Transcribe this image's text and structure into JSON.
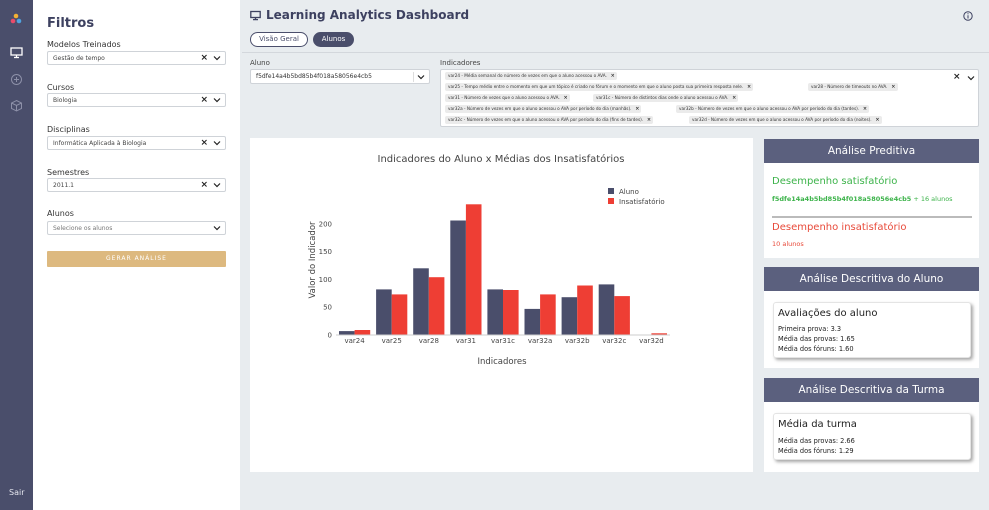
{
  "nav": {
    "sair_label": "Sair"
  },
  "filters": {
    "title": "Filtros",
    "modelos": {
      "label": "Modelos Treinados",
      "value": "Gestão de tempo"
    },
    "cursos": {
      "label": "Cursos",
      "value": "Biologia"
    },
    "disciplinas": {
      "label": "Disciplinas",
      "value": "Informática Aplicada à Biologia"
    },
    "semestres": {
      "label": "Semestres",
      "value": "2011.1"
    },
    "alunos": {
      "label": "Alunos",
      "placeholder": "Selecione os alunos"
    },
    "button_label": "GERAR ANÁLISE"
  },
  "header": {
    "title": "Learning Analytics Dashboard",
    "tabs": [
      {
        "label": "Visão Geral"
      },
      {
        "label": "Alunos"
      }
    ]
  },
  "aluno_select": {
    "label": "Aluno",
    "value": "f5dfe14a4b5bd85b4f018a58056e4cb5"
  },
  "indicadores": {
    "label": "Indicadores",
    "chips": [
      "var24 - Média semanal do número de vezes em que o aluno acessou o AVA.",
      "var25 - Tempo médio entre o momento em que um tópico é criado no fórum e o momento em que o aluno posta sua primeira resposta nele.",
      "var28 - Número de timeouts no AVA.",
      "var31 - Número de vezes que o aluno acessou o AVA.",
      "var31c - Número de distintos dias onde o aluno acessou o AVA.",
      "var32a - Número de vezes em que o aluno acessou o AVA por período do dia (manhãs).",
      "var32b - Número de vezes em que o aluno acessou o AVA por período do dia (tardes).",
      "var32c - Número de vezes em que o aluno acessou o AVA por período do dia (fins de tardes).",
      "var32d - Número de vezes em que o aluno acessou o AVA por período do dia (noites)."
    ]
  },
  "chart_data": {
    "type": "bar",
    "title": "Indicadores do Aluno x Médias dos Insatisfatórios",
    "xlabel": "Indicadores",
    "ylabel": "Valor do Indicador",
    "categories": [
      "var24",
      "var25",
      "var28",
      "var31",
      "var31c",
      "var32a",
      "var32b",
      "var32c",
      "var32d"
    ],
    "series": [
      {
        "name": "Aluno",
        "color": "#4a4e6b",
        "values": [
          7,
          82,
          120,
          206,
          82,
          47,
          68,
          91,
          0
        ]
      },
      {
        "name": "Insatisfatório",
        "color": "#ee3e34",
        "values": [
          9,
          73,
          104,
          235,
          81,
          73,
          89,
          70,
          3
        ]
      }
    ],
    "ylim": [
      0,
      250
    ],
    "yticks": [
      0,
      50,
      100,
      150,
      200
    ],
    "legend_position": "top-right",
    "grid": false
  },
  "preditiva": {
    "title": "Análise Preditiva",
    "sat_title": "Desempenho satisfatório",
    "sat_id": "f5dfe14a4b5bd85b4f018a58056e4cb5",
    "sat_rest": " + 16 alunos",
    "ins_title": "Desempenho insatisfatório",
    "ins_sub": "10 alunos"
  },
  "desc_aluno": {
    "title": "Análise Descritiva do Aluno",
    "card_title": "Avaliações do aluno",
    "lines": [
      "Primeira prova: 3.3",
      "Média das provas: 1.65",
      "Média dos fóruns: 1.60"
    ]
  },
  "desc_turma": {
    "title": "Análise Descritiva da Turma",
    "card_title": "Média da turma",
    "lines": [
      "Média das provas: 2.66",
      "Média dos fóruns: 1.29"
    ]
  }
}
